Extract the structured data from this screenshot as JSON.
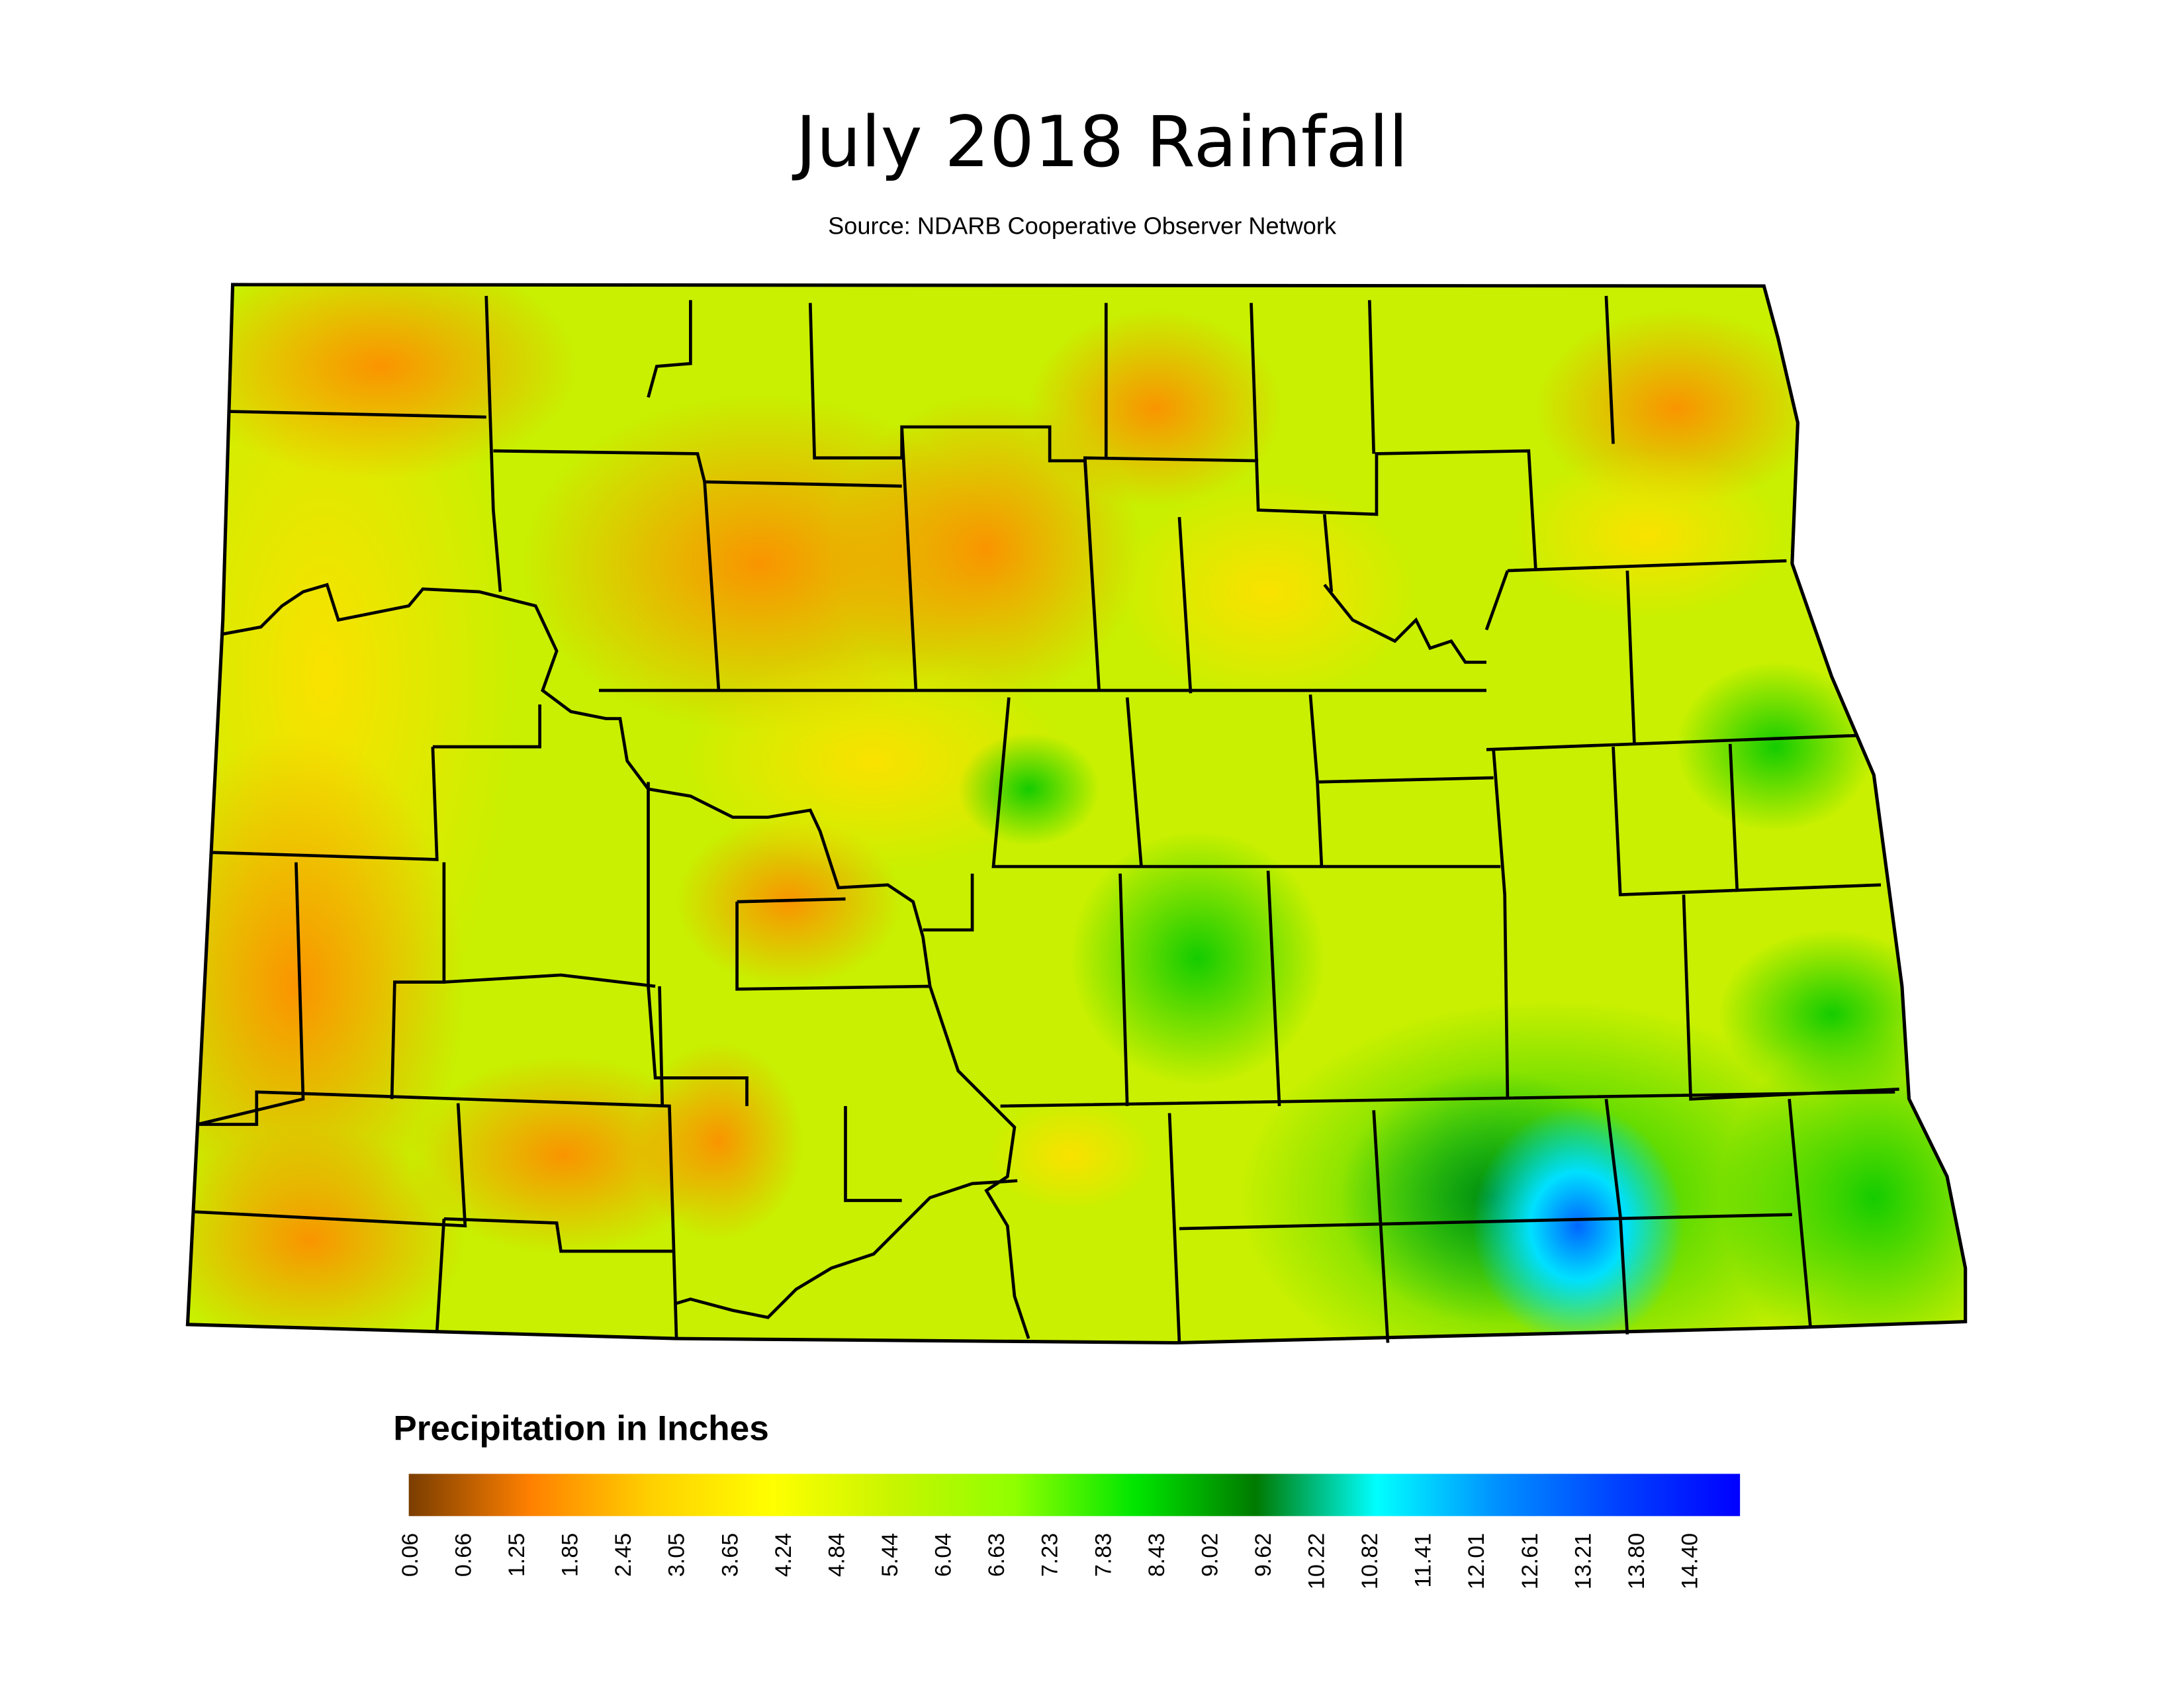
{
  "header": {
    "title": "July 2018 Rainfall",
    "source": "Source: NDARB Cooperative Observer Network"
  },
  "legend": {
    "title": "Precipitation in Inches",
    "colors": [
      "#7a3d00",
      "#ff8000",
      "#ffd000",
      "#ffff00",
      "#c8f500",
      "#90ff00",
      "#00e600",
      "#007a00",
      "#00ffff",
      "#0090ff",
      "#0040ff",
      "#0000ff"
    ],
    "ticks": [
      "0.06",
      "0.66",
      "1.25",
      "1.85",
      "2.45",
      "3.05",
      "3.65",
      "4.24",
      "4.84",
      "5.44",
      "6.04",
      "6.63",
      "7.23",
      "7.83",
      "8.43",
      "9.02",
      "9.62",
      "10.22",
      "10.82",
      "11.41",
      "12.01",
      "12.61",
      "13.21",
      "13.80",
      "14.40"
    ]
  }
}
